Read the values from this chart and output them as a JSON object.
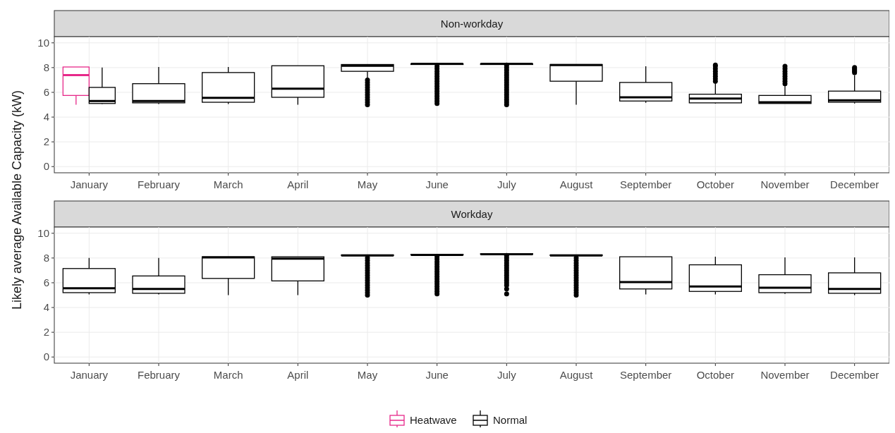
{
  "chart_data": [
    {
      "type": "box",
      "title": "Non-workday",
      "ylabel": "Likely average Available Capacity (kW)",
      "categories": [
        "January",
        "February",
        "March",
        "April",
        "May",
        "June",
        "July",
        "August",
        "September",
        "October",
        "November",
        "December"
      ],
      "ylim": [
        -0.5,
        10.5
      ],
      "yticks": [
        0,
        2,
        4,
        6,
        8,
        10
      ],
      "grid": true,
      "legend": "bottom",
      "series": [
        {
          "name": "Heatwave",
          "color": "#e7298a",
          "boxes": [
            {
              "low": 5.0,
              "q1": 5.75,
              "median": 7.4,
              "q3": 8.05,
              "high": 8.05
            },
            null,
            null,
            null,
            null,
            null,
            null,
            null,
            null,
            null,
            null,
            null
          ]
        },
        {
          "name": "Normal",
          "color": "#000000",
          "boxes": [
            {
              "low": 5.05,
              "q1": 5.1,
              "median": 5.3,
              "q3": 6.4,
              "high": 8.0
            },
            {
              "low": 5.05,
              "q1": 5.15,
              "median": 5.3,
              "q3": 6.7,
              "high": 8.05
            },
            {
              "low": 5.05,
              "q1": 5.2,
              "median": 5.55,
              "q3": 7.6,
              "high": 8.05
            },
            {
              "low": 5.0,
              "q1": 5.6,
              "median": 6.3,
              "q3": 8.15,
              "high": 8.15
            },
            {
              "low": 7.1,
              "q1": 7.7,
              "median": 8.15,
              "q3": 8.25,
              "high": 8.25,
              "outliers": [
                5.0,
                5.2,
                5.4,
                5.6,
                5.8,
                6.0,
                6.2,
                6.4,
                6.6,
                6.8,
                7.0
              ]
            },
            {
              "low": 8.25,
              "q1": 8.25,
              "median": 8.3,
              "q3": 8.3,
              "high": 8.3,
              "outliers": [
                5.1,
                5.3,
                5.5,
                5.7,
                5.9,
                6.1,
                6.3,
                6.5,
                6.7,
                6.9,
                7.1,
                7.3,
                7.5,
                7.7,
                7.9,
                8.1
              ]
            },
            {
              "low": 8.25,
              "q1": 8.25,
              "median": 8.3,
              "q3": 8.3,
              "high": 8.3,
              "outliers": [
                5.0,
                5.2,
                5.4,
                5.6,
                5.8,
                6.0,
                6.2,
                6.4,
                6.6,
                6.8,
                7.0,
                7.2,
                7.4,
                7.6,
                7.8,
                8.0,
                8.2
              ]
            },
            {
              "low": 5.0,
              "q1": 6.9,
              "median": 8.2,
              "q3": 8.25,
              "high": 8.25
            },
            {
              "low": 5.15,
              "q1": 5.3,
              "median": 5.6,
              "q3": 6.8,
              "high": 8.1
            },
            {
              "low": 5.1,
              "q1": 5.15,
              "median": 5.5,
              "q3": 5.85,
              "high": 6.8,
              "outliers": [
                6.9,
                7.1,
                7.3,
                7.5,
                7.7,
                7.9,
                8.1,
                8.2
              ]
            },
            {
              "low": 5.1,
              "q1": 5.1,
              "median": 5.2,
              "q3": 5.75,
              "high": 6.6,
              "outliers": [
                6.7,
                6.9,
                7.1,
                7.3,
                7.5,
                7.7,
                7.9,
                8.1
              ]
            },
            {
              "low": 5.1,
              "q1": 5.2,
              "median": 5.35,
              "q3": 6.1,
              "high": 7.4,
              "outliers": [
                7.6,
                7.7,
                7.8,
                7.9,
                8.0
              ]
            }
          ]
        }
      ]
    },
    {
      "type": "box",
      "title": "Workday",
      "categories": [
        "January",
        "February",
        "March",
        "April",
        "May",
        "June",
        "July",
        "August",
        "September",
        "October",
        "November",
        "December"
      ],
      "ylim": [
        -0.5,
        10.5
      ],
      "yticks": [
        0,
        2,
        4,
        6,
        8,
        10
      ],
      "grid": true,
      "legend": "bottom",
      "series": [
        {
          "name": "Normal",
          "color": "#000000",
          "boxes": [
            {
              "low": 5.05,
              "q1": 5.2,
              "median": 5.55,
              "q3": 7.15,
              "high": 8.0
            },
            {
              "low": 5.05,
              "q1": 5.15,
              "median": 5.5,
              "q3": 6.55,
              "high": 8.0
            },
            {
              "low": 5.0,
              "q1": 6.35,
              "median": 8.05,
              "q3": 8.1,
              "high": 8.1
            },
            {
              "low": 5.0,
              "q1": 6.15,
              "median": 7.95,
              "q3": 8.1,
              "high": 8.1
            },
            {
              "low": 8.2,
              "q1": 8.2,
              "median": 8.2,
              "q3": 8.25,
              "high": 8.25,
              "outliers": [
                5.0,
                5.2,
                5.4,
                5.6,
                5.8,
                6.0,
                6.2,
                6.4,
                6.6,
                6.8,
                7.0,
                7.2,
                7.4,
                7.6,
                7.8,
                8.0
              ]
            },
            {
              "low": 8.25,
              "q1": 8.25,
              "median": 8.25,
              "q3": 8.3,
              "high": 8.3,
              "outliers": [
                5.1,
                5.3,
                5.5,
                5.7,
                5.9,
                6.1,
                6.3,
                6.5,
                6.7,
                6.9,
                7.1,
                7.3,
                7.5,
                7.7,
                7.9,
                8.1
              ]
            },
            {
              "low": 8.3,
              "q1": 8.3,
              "median": 8.3,
              "q3": 8.35,
              "high": 8.35,
              "outliers": [
                5.1,
                5.5,
                5.8,
                6.0,
                6.2,
                6.4,
                6.6,
                6.8,
                7.0,
                7.2,
                7.4,
                7.6,
                7.8,
                8.0,
                8.2
              ]
            },
            {
              "low": 8.2,
              "q1": 8.2,
              "median": 8.2,
              "q3": 8.25,
              "high": 8.25,
              "outliers": [
                5.0,
                5.2,
                5.4,
                5.6,
                5.8,
                6.0,
                6.2,
                6.4,
                6.6,
                6.8,
                7.0,
                7.2,
                7.4,
                7.6,
                7.8,
                8.0
              ]
            },
            {
              "low": 5.05,
              "q1": 5.5,
              "median": 6.05,
              "q3": 8.1,
              "high": 8.1
            },
            {
              "low": 5.05,
              "q1": 5.3,
              "median": 5.7,
              "q3": 7.45,
              "high": 8.1
            },
            {
              "low": 5.1,
              "q1": 5.2,
              "median": 5.6,
              "q3": 6.65,
              "high": 8.05
            },
            {
              "low": 5.0,
              "q1": 5.15,
              "median": 5.5,
              "q3": 6.8,
              "high": 8.05
            }
          ]
        }
      ]
    }
  ]
}
